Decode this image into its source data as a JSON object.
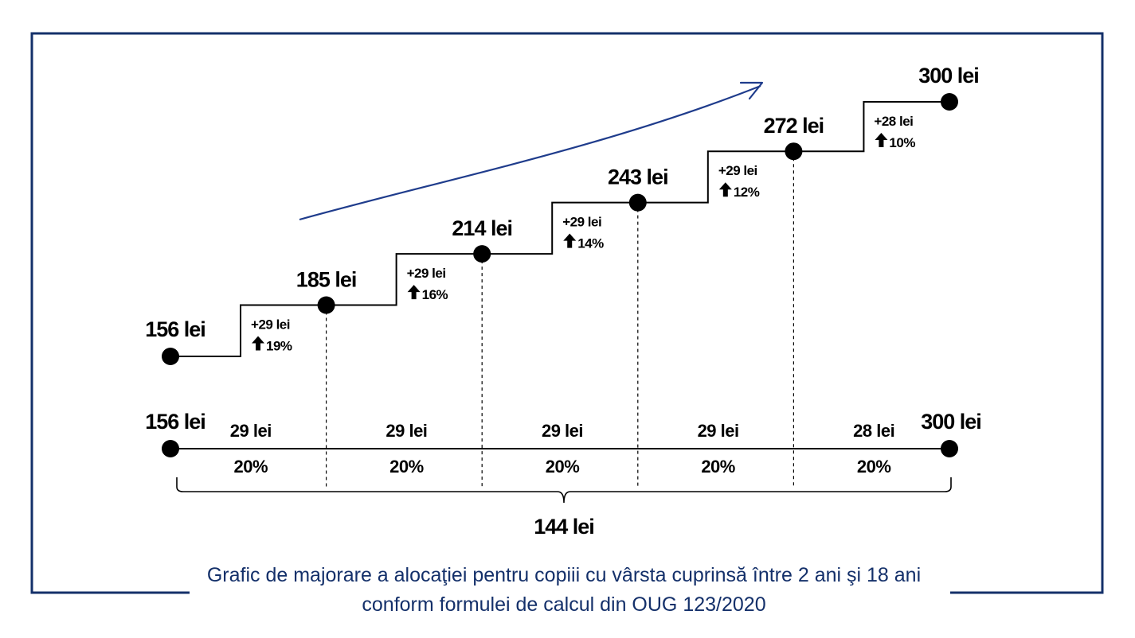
{
  "colors": {
    "frame": "#14306a",
    "ink": "#000000",
    "arrow": "#1f3c8c",
    "caption": "#14306a"
  },
  "caption": {
    "line1": "Grafic de majorare a alocaţiei pentru copiii cu vârsta cuprinsă între 2 ani şi 18 ani",
    "line2": "conform formulei de calcul din OUG 123/2020"
  },
  "chart_data": {
    "type": "line",
    "values": [
      156,
      185,
      214,
      243,
      272,
      300
    ],
    "point_labels": [
      "156 lei",
      "185 lei",
      "214 lei",
      "243 lei",
      "272 lei",
      "300 lei"
    ],
    "increments": [
      {
        "amount": "+29 lei",
        "percent": "19%"
      },
      {
        "amount": "+29 lei",
        "percent": "16%"
      },
      {
        "amount": "+29 lei",
        "percent": "14%"
      },
      {
        "amount": "+29 lei",
        "percent": "12%"
      },
      {
        "amount": "+28 lei",
        "percent": "10%"
      }
    ],
    "timeline": {
      "start_label": "156 lei",
      "end_label": "300 lei",
      "segments": [
        {
          "amount": "29 lei",
          "share": "20%"
        },
        {
          "amount": "29 lei",
          "share": "20%"
        },
        {
          "amount": "29 lei",
          "share": "20%"
        },
        {
          "amount": "29 lei",
          "share": "20%"
        },
        {
          "amount": "28 lei",
          "share": "20%"
        }
      ],
      "total": "144 lei"
    },
    "trend_arrow": true
  }
}
